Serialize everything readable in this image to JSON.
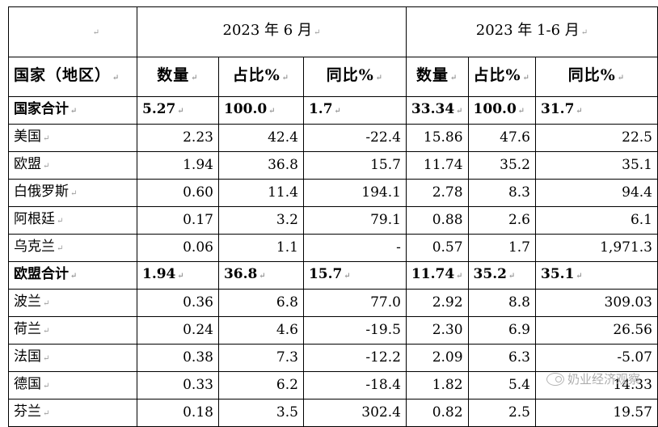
{
  "mark": "↵",
  "header": {
    "period_month": "2023 年 6 月",
    "period_half": "2023 年 1-6 月",
    "col_country": "国家（地区）",
    "col_qty": "数量",
    "col_share": "占比%",
    "col_yoy": "同比%"
  },
  "rows": [
    {
      "name": "国家合计",
      "m_qty": "5.27",
      "m_share": "100.0",
      "m_yoy": "1.7",
      "h_qty": "33.34",
      "h_share": "100.0",
      "h_yoy": "31.7"
    },
    {
      "name": "美国",
      "m_qty": "2.23",
      "m_share": "42.4",
      "m_yoy": "-22.4",
      "h_qty": "15.86",
      "h_share": "47.6",
      "h_yoy": "22.5"
    },
    {
      "name": "欧盟",
      "m_qty": "1.94",
      "m_share": "36.8",
      "m_yoy": "15.7",
      "h_qty": "11.74",
      "h_share": "35.2",
      "h_yoy": "35.1"
    },
    {
      "name": "白俄罗斯",
      "m_qty": "0.60",
      "m_share": "11.4",
      "m_yoy": "194.1",
      "h_qty": "2.78",
      "h_share": "8.3",
      "h_yoy": "94.4"
    },
    {
      "name": "阿根廷",
      "m_qty": "0.17",
      "m_share": "3.2",
      "m_yoy": "79.1",
      "h_qty": "0.88",
      "h_share": "2.6",
      "h_yoy": "6.1"
    },
    {
      "name": "乌克兰",
      "m_qty": "0.06",
      "m_share": "1.1",
      "m_yoy": "-",
      "h_qty": "0.57",
      "h_share": "1.7",
      "h_yoy": "1,971.3"
    },
    {
      "name": "欧盟合计",
      "m_qty": "1.94",
      "m_share": "36.8",
      "m_yoy": "15.7",
      "h_qty": "11.74",
      "h_share": "35.2",
      "h_yoy": "35.1"
    },
    {
      "name": "波兰",
      "m_qty": "0.36",
      "m_share": "6.8",
      "m_yoy": "77.0",
      "h_qty": "2.92",
      "h_share": "8.8",
      "h_yoy": "309.03"
    },
    {
      "name": "荷兰",
      "m_qty": "0.24",
      "m_share": "4.6",
      "m_yoy": "-19.5",
      "h_qty": "2.30",
      "h_share": "6.9",
      "h_yoy": "26.56"
    },
    {
      "name": "法国",
      "m_qty": "0.38",
      "m_share": "7.3",
      "m_yoy": "-12.2",
      "h_qty": "2.09",
      "h_share": "6.3",
      "h_yoy": "-5.07"
    },
    {
      "name": "德国",
      "m_qty": "0.33",
      "m_share": "6.2",
      "m_yoy": "-18.4",
      "h_qty": "1.82",
      "h_share": "5.4",
      "h_yoy": "14.33"
    },
    {
      "name": "芬兰",
      "m_qty": "0.18",
      "m_share": "3.5",
      "m_yoy": "302.4",
      "h_qty": "0.82",
      "h_share": "2.5",
      "h_yoy": "19.57"
    }
  ],
  "watermark": "奶业经济观察"
}
